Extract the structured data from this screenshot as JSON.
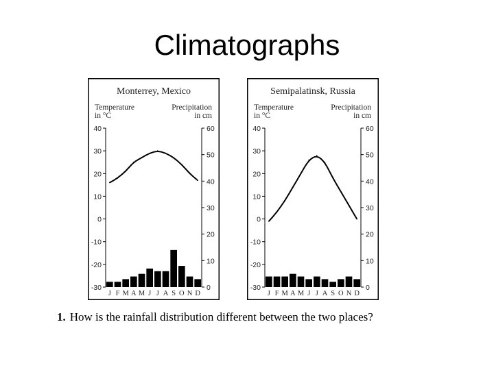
{
  "slide": {
    "title": "Climatographs",
    "question_number": "1.",
    "question_text": "How is the rainfall distribution different between the two places?"
  },
  "chart_data": [
    {
      "type": "bar+line",
      "title": "Monterrey, Mexico",
      "left_axis_label": [
        "Temperature",
        "in °C"
      ],
      "right_axis_label": [
        "Precipitation",
        "in cm"
      ],
      "months": [
        "J",
        "F",
        "M",
        "A",
        "M",
        "J",
        "J",
        "A",
        "S",
        "O",
        "N",
        "D"
      ],
      "temperature_c": [
        16,
        18,
        21,
        25,
        27,
        29,
        30,
        29,
        27,
        24,
        20,
        17
      ],
      "precipitation_cm": [
        2,
        2,
        3,
        4,
        5,
        7,
        6,
        6,
        14,
        8,
        4,
        3
      ],
      "left_ylim": [
        -30,
        40
      ],
      "left_ticks": [
        40,
        30,
        20,
        10,
        0,
        -10,
        -20,
        -30
      ],
      "right_ylim": [
        0,
        60
      ],
      "right_ticks": [
        60,
        50,
        40,
        30,
        20,
        10,
        0
      ]
    },
    {
      "type": "bar+line",
      "title": "Semipalatinsk, Russia",
      "left_axis_label": [
        "Temperature",
        "in °C"
      ],
      "right_axis_label": [
        "Precipitation",
        "in cm"
      ],
      "months": [
        "J",
        "F",
        "M",
        "A",
        "M",
        "J",
        "J",
        "A",
        "S",
        "O",
        "N",
        "D"
      ],
      "temperature_c": [
        -1,
        3,
        8,
        14,
        20,
        26,
        28,
        25,
        18,
        12,
        6,
        0
      ],
      "precipitation_cm": [
        4,
        4,
        4,
        5,
        4,
        3,
        4,
        3,
        2,
        3,
        4,
        3
      ],
      "left_ylim": [
        -30,
        40
      ],
      "left_ticks": [
        40,
        30,
        20,
        10,
        0,
        -10,
        -20,
        -30
      ],
      "right_ylim": [
        0,
        60
      ],
      "right_ticks": [
        60,
        50,
        40,
        30,
        20,
        10,
        0
      ]
    }
  ]
}
